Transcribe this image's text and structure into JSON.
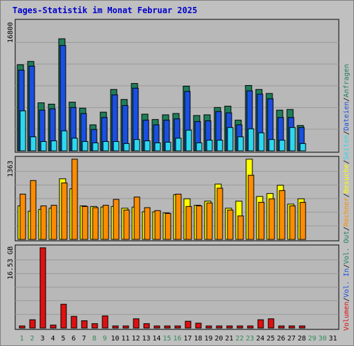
{
  "page_title": "Tages-Statistik im Monat Februar 2025",
  "colors": {
    "background": "#c0c0c0",
    "panel": "#b8b8b8",
    "title": "#0000cc",
    "weekday_label": "#008000",
    "weekend_label": "#2e8b57",
    "hits": "#1f7f5a",
    "files": "#1a4fe0",
    "pages": "#2cd8f0",
    "visits": "#ffff00",
    "sites": "#ff8c00",
    "kbytes": "#e01010"
  },
  "chart_data": [
    {
      "type": "bar",
      "title": "Tages-Statistik im Monat Februar 2025",
      "categories": [
        "1",
        "2",
        "3",
        "4",
        "5",
        "6",
        "7",
        "8",
        "9",
        "10",
        "11",
        "12",
        "13",
        "14",
        "15",
        "16",
        "17",
        "18",
        "19",
        "20",
        "21",
        "22",
        "23",
        "24",
        "25",
        "26",
        "27",
        "28",
        "29",
        "30",
        "31"
      ],
      "weekend_days": [
        "1",
        "2",
        "8",
        "9",
        "15",
        "16",
        "22",
        "23",
        "29",
        "30"
      ],
      "ylim": [
        0,
        16800
      ],
      "y_tick_label": "16800",
      "series": [
        {
          "name": "Anfragen",
          "color_key": "hits",
          "values": [
            12900,
            13400,
            7200,
            7000,
            16800,
            7300,
            6400,
            3900,
            5800,
            9200,
            7700,
            10100,
            5500,
            4700,
            5400,
            5600,
            9700,
            5300,
            5400,
            6500,
            6700,
            4600,
            9800,
            9200,
            8600,
            6100,
            6200,
            3800,
            0,
            0,
            0
          ]
        },
        {
          "name": "Dateien",
          "color_key": "files",
          "values": [
            12100,
            12700,
            6100,
            6300,
            15800,
            6500,
            5600,
            3200,
            5000,
            8400,
            6800,
            9400,
            4600,
            3900,
            4600,
            4800,
            8900,
            4400,
            4500,
            5900,
            5700,
            3900,
            9000,
            8500,
            7800,
            5000,
            5000,
            3500,
            0,
            0,
            0
          ]
        },
        {
          "name": "Seiten",
          "color_key": "pages",
          "values": [
            6000,
            2100,
            1400,
            1500,
            3000,
            1900,
            1400,
            1200,
            1400,
            1400,
            1100,
            1700,
            1500,
            1200,
            1300,
            1900,
            3100,
            1200,
            1600,
            1600,
            3500,
            2100,
            3300,
            2700,
            1700,
            1600,
            3500,
            1100,
            0,
            0,
            0
          ]
        },
        {
          "name": "Besuche",
          "color_key": "visits",
          "values": [
            570,
            480,
            510,
            530,
            1030,
            860,
            570,
            560,
            550,
            560,
            530,
            550,
            470,
            470,
            450,
            760,
            690,
            580,
            650,
            940,
            530,
            650,
            1363,
            730,
            780,
            920,
            600,
            690,
            0,
            0,
            0
          ]
        },
        {
          "name": "Rechner",
          "color_key": "sites",
          "values": [
            770,
            1000,
            570,
            580,
            960,
            1363,
            560,
            540,
            580,
            680,
            500,
            720,
            540,
            490,
            440,
            770,
            560,
            570,
            620,
            870,
            500,
            400,
            1090,
            630,
            690,
            830,
            570,
            630,
            0,
            0,
            0
          ]
        }
      ]
    },
    {
      "type": "bar",
      "ylim": [
        0,
        16.53
      ],
      "y_tick_label": "16.53 GB",
      "series": [
        {
          "name": "Volumen",
          "color_key": "kbytes",
          "values": [
            0.3,
            1.7,
            16.53,
            0.6,
            4.9,
            2.4,
            1.5,
            0.9,
            2.5,
            0.3,
            0.3,
            1.9,
            0.9,
            0.3,
            0.3,
            0.3,
            1.4,
            1.0,
            0.2,
            0.3,
            0.3,
            0.4,
            0.4,
            1.7,
            1.9,
            0.3,
            0.3,
            0.3,
            0,
            0,
            0
          ]
        }
      ]
    }
  ],
  "side_legend": [
    {
      "text": "Volumen",
      "color_key": "kbytes"
    },
    {
      "text": "/",
      "color_key": "dark"
    },
    {
      "text": "Vol. In",
      "color_key": "files"
    },
    {
      "text": "/",
      "color_key": "dark"
    },
    {
      "text": "Vol. Out",
      "color_key": "hits"
    },
    {
      "text": "/",
      "color_key": "dark"
    },
    {
      "text": "Rechner",
      "color_key": "sites"
    },
    {
      "text": "/",
      "color_key": "dark"
    },
    {
      "text": "Besuche",
      "color_key": "visits"
    },
    {
      "text": "/",
      "color_key": "dark"
    },
    {
      "text": "Seiten",
      "color_key": "pages"
    },
    {
      "text": "/",
      "color_key": "dark"
    },
    {
      "text": "Dateien",
      "color_key": "files"
    },
    {
      "text": "/",
      "color_key": "dark"
    },
    {
      "text": "Anfragen",
      "color_key": "hits"
    }
  ]
}
